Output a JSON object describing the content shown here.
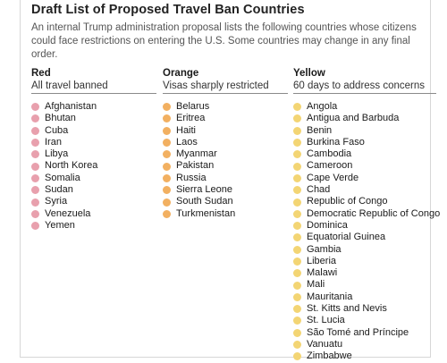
{
  "title": "Draft List of Proposed Travel Ban Countries",
  "subtitle": "An internal Trump administration proposal lists the following countries whose citizens could face restrictions on entering the U.S. Some countries may change in any final order.",
  "columns": [
    {
      "heading": "Red",
      "description": "All travel banned",
      "color": "#e8a0ad",
      "countries": [
        "Afghanistan",
        "Bhutan",
        "Cuba",
        "Iran",
        "Libya",
        "North Korea",
        "Somalia",
        "Sudan",
        "Syria",
        "Venezuela",
        "Yemen"
      ]
    },
    {
      "heading": "Orange",
      "description": "Visas sharply restricted",
      "color": "#f2b061",
      "countries": [
        "Belarus",
        "Eritrea",
        "Haiti",
        "Laos",
        "Myanmar",
        "Pakistan",
        "Russia",
        "Sierra Leone",
        "South Sudan",
        "Turkmenistan"
      ]
    },
    {
      "heading": "Yellow",
      "description": "60 days to address concerns",
      "color": "#f3d574",
      "countries": [
        "Angola",
        "Antigua and Barbuda",
        "Benin",
        "Burkina Faso",
        "Cambodia",
        "Cameroon",
        "Cape Verde",
        "Chad",
        "Republic of Congo",
        "Democratic Republic of Congo",
        "Dominica",
        "Equatorial Guinea",
        "Gambia",
        "Liberia",
        "Malawi",
        "Mali",
        "Mauritania",
        "St. Kitts and Nevis",
        "St. Lucia",
        "São Tomé and Príncipe",
        "Vanuatu",
        "Zimbabwe"
      ]
    }
  ]
}
